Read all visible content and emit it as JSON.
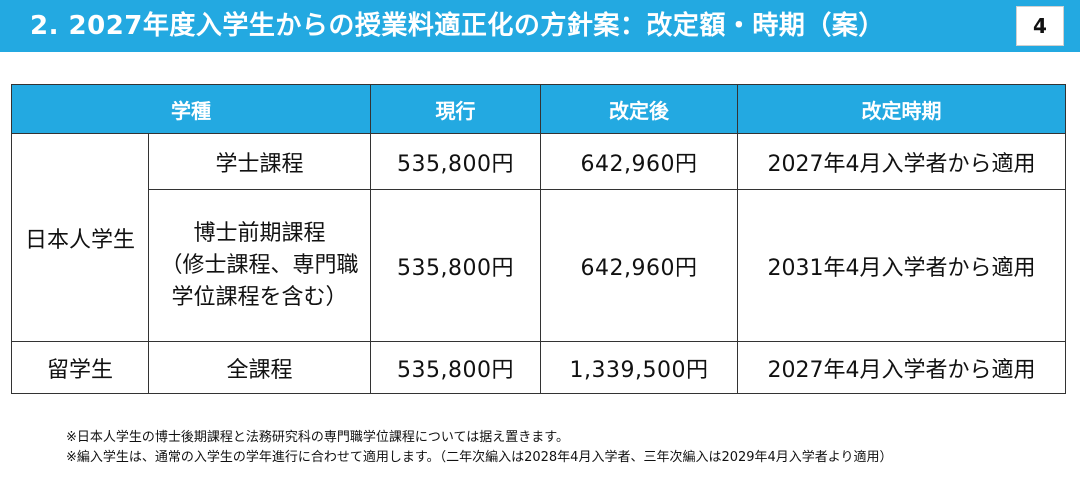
{
  "header": {
    "title": "2. 2027年度入学生からの授業料適正化の方針案：改定額・時期（案）",
    "page_number": "4",
    "accent_color": "#23a9e1"
  },
  "table": {
    "headers": {
      "category": "学種",
      "current": "現行",
      "revised": "改定後",
      "timing": "改定時期"
    },
    "groups": {
      "japanese": "日本人学生",
      "international": "留学生"
    },
    "rows": [
      {
        "course": "学士課程",
        "current": "535,800円",
        "revised": "642,960円",
        "timing": "2027年4月入学者から適用"
      },
      {
        "course_lines": [
          "博士前期課程",
          "（修士課程、専門職",
          "学位課程を含む）"
        ],
        "current": "535,800円",
        "revised": "642,960円",
        "timing": "2031年4月入学者から適用"
      },
      {
        "course": "全課程",
        "current": "535,800円",
        "revised": "1,339,500円",
        "timing": "2027年4月入学者から適用"
      }
    ]
  },
  "notes": [
    "※日本人学生の博士後期課程と法務研究科の専門職学位課程については据え置きます。",
    "※編入学生は、通常の入学生の学年進行に合わせて適用します。（二年次編入は2028年4月入学者、三年次編入は2029年4月入学者より適用）"
  ]
}
